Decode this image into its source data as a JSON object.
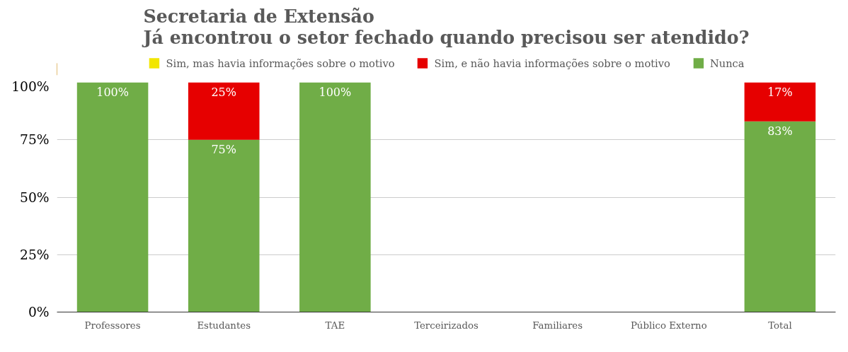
{
  "chart_data": {
    "type": "bar",
    "title": "Secretaria de Extensão\nJá encontrou o setor fechado quando precisou ser atendido?",
    "categories": [
      "Professores",
      "Estudantes",
      "TAE",
      "Terceirizados",
      "Familiares",
      "Público Externo",
      "Total"
    ],
    "stacked": true,
    "series": [
      {
        "name": "Nunca",
        "color": "#70ad47",
        "values": [
          100,
          75,
          100,
          0,
          0,
          0,
          83
        ],
        "value_labels": [
          "100%",
          "75%",
          "100%",
          null,
          null,
          null,
          "83%"
        ]
      },
      {
        "name": "Sim, e não havia informações sobre o motivo",
        "color": "#e60000",
        "values": [
          0,
          25,
          0,
          0,
          0,
          0,
          17
        ],
        "value_labels": [
          null,
          "25%",
          null,
          null,
          null,
          null,
          "17%"
        ]
      },
      {
        "name": "Sim, mas havia informações sobre o motivo",
        "color": "#f2e600",
        "values": [
          0,
          0,
          0,
          0,
          0,
          0,
          0
        ],
        "value_labels": [
          null,
          null,
          null,
          null,
          null,
          null,
          null
        ]
      }
    ],
    "ylim": [
      0,
      100
    ],
    "yticks": [
      {
        "value": 0,
        "label": "0%"
      },
      {
        "value": 25,
        "label": "25%"
      },
      {
        "value": 50,
        "label": "50%"
      },
      {
        "value": 75,
        "label": "75%"
      },
      {
        "value": 100,
        "label": "100%"
      }
    ],
    "grid": "y",
    "legend": "top"
  }
}
